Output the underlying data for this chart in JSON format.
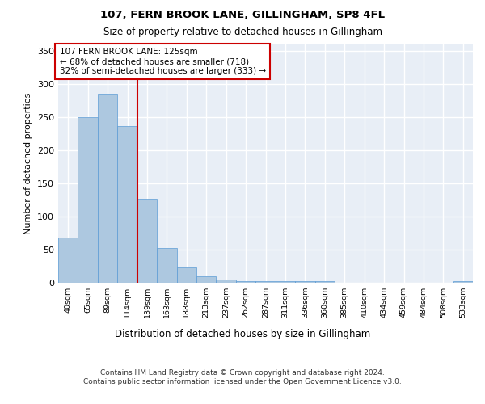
{
  "title1": "107, FERN BROOK LANE, GILLINGHAM, SP8 4FL",
  "title2": "Size of property relative to detached houses in Gillingham",
  "xlabel": "Distribution of detached houses by size in Gillingham",
  "ylabel": "Number of detached properties",
  "footnote": "Contains HM Land Registry data © Crown copyright and database right 2024.\nContains public sector information licensed under the Open Government Licence v3.0.",
  "categories": [
    "40sqm",
    "65sqm",
    "89sqm",
    "114sqm",
    "139sqm",
    "163sqm",
    "188sqm",
    "213sqm",
    "237sqm",
    "262sqm",
    "287sqm",
    "311sqm",
    "336sqm",
    "360sqm",
    "385sqm",
    "410sqm",
    "434sqm",
    "459sqm",
    "484sqm",
    "508sqm",
    "533sqm"
  ],
  "values": [
    68,
    250,
    286,
    237,
    127,
    52,
    23,
    10,
    5,
    2,
    2,
    2,
    2,
    3,
    0,
    0,
    0,
    0,
    0,
    0,
    3
  ],
  "bar_color": "#adc8e0",
  "bar_edge_color": "#5b9bd5",
  "bg_color": "#e8eef6",
  "grid_color": "#ffffff",
  "property_line_x": 3.5,
  "annotation_title": "107 FERN BROOK LANE: 125sqm",
  "annotation_line1": "← 68% of detached houses are smaller (718)",
  "annotation_line2": "32% of semi-detached houses are larger (333) →",
  "annotation_box_color": "#ffffff",
  "annotation_border_color": "#cc0000",
  "vline_color": "#cc0000",
  "ylim": [
    0,
    360
  ],
  "yticks": [
    0,
    50,
    100,
    150,
    200,
    250,
    300,
    350
  ]
}
